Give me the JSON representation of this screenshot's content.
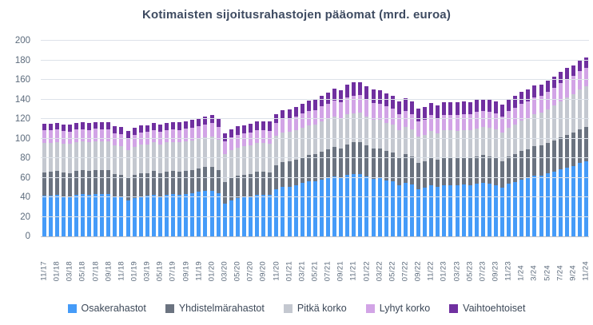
{
  "chart_data": {
    "type": "bar",
    "stacked": true,
    "title": "Kotimaisten sijoitusrahastojen pääomat (mrd. euroa)",
    "xlabel": "",
    "ylabel": "",
    "ylim": [
      0,
      200
    ],
    "yticks": [
      0,
      20,
      40,
      60,
      80,
      100,
      120,
      140,
      160,
      180,
      200
    ],
    "grid": true,
    "legend_position": "bottom",
    "x_tick_every": 2,
    "categories": [
      "11/17",
      "12/17",
      "01/18",
      "02/18",
      "03/18",
      "04/18",
      "05/18",
      "06/18",
      "07/18",
      "08/18",
      "09/18",
      "10/18",
      "11/18",
      "12/18",
      "01/19",
      "02/19",
      "03/19",
      "04/19",
      "05/19",
      "06/19",
      "07/19",
      "08/19",
      "09/19",
      "10/19",
      "11/19",
      "12/19",
      "01/20",
      "02/20",
      "03/20",
      "04/20",
      "05/20",
      "06/20",
      "07/20",
      "08/20",
      "09/20",
      "10/20",
      "11/20",
      "12/20",
      "01/21",
      "02/21",
      "03/21",
      "04/21",
      "05/21",
      "06/21",
      "07/21",
      "08/21",
      "09/21",
      "10/21",
      "11/21",
      "12/21",
      "01/22",
      "02/22",
      "03/22",
      "04/22",
      "05/22",
      "06/22",
      "07/22",
      "08/22",
      "09/22",
      "10/22",
      "11/22",
      "12/22",
      "01/23",
      "02/23",
      "03/23",
      "04/23",
      "05/23",
      "06/23",
      "07/23",
      "08/23",
      "09/23",
      "10/23",
      "11/23",
      "12/23",
      "1/24",
      "2/24",
      "3/24",
      "4/24",
      "5/24",
      "6/24",
      "7/24",
      "8/24",
      "9/24",
      "10/24",
      "11/24"
    ],
    "series": [
      {
        "name": "Osakerahastot",
        "color": "#459bf8",
        "values": [
          41.3,
          41.5,
          42.3,
          41.2,
          40.8,
          42.4,
          43.0,
          42.3,
          43.4,
          43.3,
          43.3,
          40.2,
          39.8,
          36.9,
          39.6,
          40.9,
          41.3,
          42.8,
          41.0,
          42.6,
          42.9,
          42.2,
          43.3,
          43.9,
          45.4,
          46.7,
          46.5,
          43.7,
          33.8,
          37.0,
          38.8,
          39.8,
          40.7,
          42.6,
          42.5,
          42.1,
          47.9,
          50.3,
          50.8,
          52.4,
          54.3,
          56.0,
          56.5,
          58.3,
          59.8,
          61.5,
          60.1,
          62.8,
          63.5,
          63.8,
          61.0,
          58.9,
          59.4,
          57.4,
          56.3,
          52.2,
          55.1,
          53.0,
          48.0,
          49.5,
          52.5,
          50.5,
          52.5,
          52.6,
          52.2,
          52.8,
          52.6,
          54.0,
          54.8,
          54.0,
          52.6,
          50.2,
          53.8,
          55.8,
          58.3,
          59.8,
          61.8,
          62.4,
          64.3,
          66.3,
          68.3,
          70.5,
          72.1,
          75.0,
          76.8
        ]
      },
      {
        "name": "Yhdistelmärahastot",
        "color": "#6b7380",
        "values": [
          24.4,
          24.4,
          24.5,
          24.2,
          24.1,
          24.4,
          24.4,
          24.3,
          24.5,
          24.4,
          24.3,
          23.6,
          23.4,
          22.7,
          23.2,
          23.5,
          23.6,
          23.9,
          23.5,
          23.8,
          23.9,
          23.8,
          24.0,
          24.1,
          24.4,
          24.6,
          24.8,
          24.2,
          21.9,
          22.5,
          22.9,
          23.1,
          23.3,
          23.6,
          23.6,
          23.5,
          24.8,
          25.5,
          25.8,
          26.2,
          26.8,
          27.4,
          27.7,
          28.5,
          29.3,
          30.2,
          30.0,
          31.5,
          32.5,
          32.7,
          32.0,
          31.2,
          30.7,
          30.1,
          29.6,
          28.5,
          29.0,
          28.4,
          27.0,
          27.3,
          28.0,
          27.5,
          27.9,
          27.9,
          27.7,
          27.8,
          27.7,
          28.0,
          28.2,
          28.0,
          27.6,
          26.9,
          27.8,
          28.4,
          29.1,
          29.6,
          30.3,
          30.6,
          31.3,
          32.0,
          32.8,
          33.5,
          34.0,
          34.8,
          35.2
        ]
      },
      {
        "name": "Pitkä korko",
        "color": "#c4c8d0",
        "values": [
          30.0,
          30.0,
          29.9,
          29.7,
          29.6,
          29.6,
          29.5,
          29.4,
          29.4,
          29.3,
          29.2,
          29.0,
          28.9,
          28.7,
          28.9,
          29.1,
          29.3,
          29.4,
          29.6,
          29.7,
          29.9,
          30.1,
          30.1,
          30.2,
          30.3,
          30.3,
          30.8,
          30.5,
          28.1,
          28.6,
          28.9,
          29.1,
          29.3,
          29.3,
          29.4,
          29.4,
          29.9,
          30.2,
          30.2,
          30.0,
          30.2,
          30.3,
          30.4,
          30.6,
          30.7,
          30.8,
          30.6,
          30.7,
          30.0,
          29.9,
          29.5,
          29.2,
          28.9,
          28.5,
          28.2,
          27.8,
          28.0,
          27.7,
          26.9,
          27.0,
          27.5,
          27.4,
          27.8,
          27.9,
          28.1,
          28.3,
          28.4,
          28.6,
          28.8,
          28.9,
          28.9,
          28.7,
          29.4,
          30.0,
          30.8,
          31.5,
          32.6,
          33.2,
          34.5,
          35.9,
          37.2,
          38.4,
          39.4,
          40.8,
          41.3
        ]
      },
      {
        "name": "Lyhyt korko",
        "color": "#d2a4e6",
        "values": [
          12.8,
          12.9,
          12.9,
          12.8,
          12.8,
          12.8,
          12.7,
          12.7,
          12.7,
          12.6,
          12.6,
          12.5,
          12.5,
          12.4,
          12.4,
          12.4,
          12.4,
          12.4,
          12.5,
          12.5,
          12.6,
          12.7,
          12.7,
          12.8,
          12.9,
          13.0,
          13.6,
          13.7,
          13.3,
          13.2,
          13.2,
          13.2,
          13.2,
          13.2,
          13.2,
          13.2,
          13.5,
          13.7,
          13.8,
          13.9,
          14.2,
          14.5,
          14.8,
          15.3,
          15.8,
          16.3,
          16.6,
          17.2,
          17.8,
          17.8,
          17.5,
          17.2,
          16.9,
          16.7,
          16.5,
          16.2,
          16.2,
          16.0,
          15.6,
          15.6,
          15.8,
          15.8,
          15.9,
          16.0,
          16.1,
          16.2,
          16.3,
          16.4,
          16.5,
          16.6,
          16.6,
          16.5,
          16.8,
          17.0,
          17.2,
          17.3,
          17.5,
          17.6,
          17.8,
          17.9,
          18.5,
          18.6,
          18.6,
          18.7,
          18.7
        ]
      },
      {
        "name": "Vaihtoehtoiset",
        "color": "#7030a0",
        "values": [
          6.5,
          6.6,
          6.6,
          6.7,
          6.7,
          6.8,
          6.8,
          6.9,
          6.9,
          7.0,
          7.0,
          7.1,
          7.1,
          7.2,
          7.2,
          7.3,
          7.3,
          7.4,
          7.4,
          7.5,
          7.6,
          7.7,
          7.8,
          7.9,
          8.0,
          8.1,
          8.3,
          8.4,
          8.3,
          8.5,
          8.6,
          8.7,
          8.8,
          8.9,
          9.0,
          9.1,
          9.2,
          9.4,
          9.6,
          9.8,
          10.1,
          10.4,
          10.7,
          11.1,
          11.5,
          11.9,
          12.2,
          12.8,
          13.5,
          13.7,
          13.6,
          13.5,
          13.4,
          13.3,
          13.2,
          13.1,
          13.2,
          13.1,
          12.9,
          12.9,
          12.9,
          12.8,
          12.8,
          12.7,
          12.7,
          12.6,
          12.6,
          12.5,
          12.5,
          12.4,
          12.4,
          12.3,
          12.3,
          12.2,
          12.1,
          11.9,
          11.8,
          11.6,
          11.5,
          11.3,
          11.2,
          11.0,
          10.9,
          10.7,
          10.5
        ]
      }
    ]
  },
  "colors": {
    "background": "#ffffff",
    "title_text": "#3e4b61",
    "axis_text": "#5c6b7c",
    "gridline": "#dde2e9",
    "axis_line": "#b9c0ca",
    "legend_text": "#3c4858"
  }
}
